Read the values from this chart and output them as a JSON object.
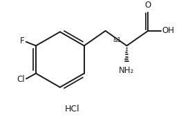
{
  "bg_color": "#ffffff",
  "line_color": "#1a1a1a",
  "line_width": 1.4,
  "font_size": 8.5,
  "label_F": "F",
  "label_Cl": "Cl",
  "label_O": "O",
  "label_OH": "OH",
  "label_NH2": "NH₂",
  "label_HCl": "HCl",
  "label_stereo": "&1",
  "figsize": [
    2.75,
    1.73
  ],
  "dpi": 100
}
